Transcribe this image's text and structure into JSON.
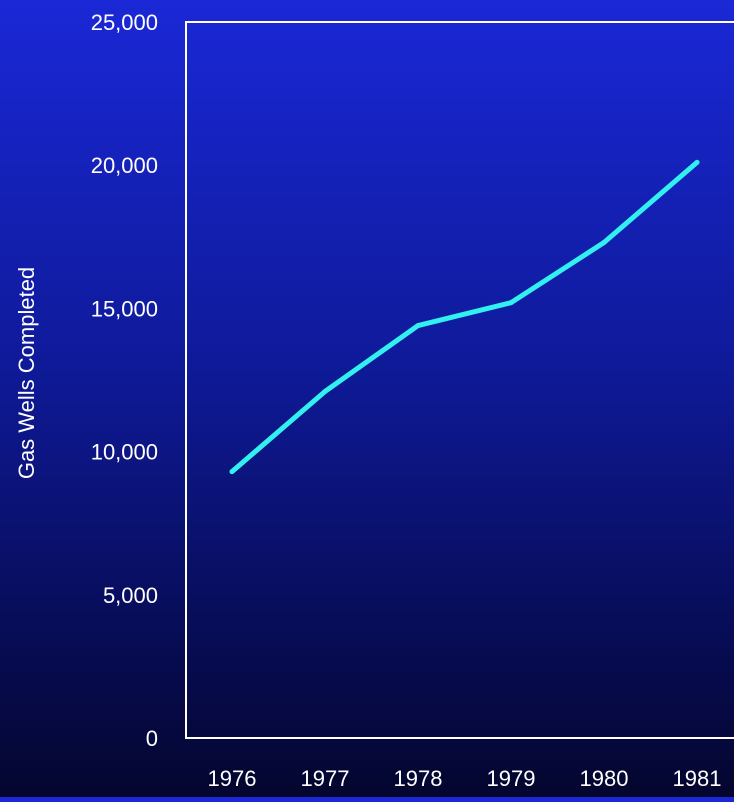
{
  "chart_data": {
    "type": "line",
    "title": "",
    "xlabel": "",
    "ylabel": "Gas Wells Completed",
    "categories": [
      "1976",
      "1977",
      "1978",
      "1979",
      "1980",
      "1981"
    ],
    "series": [
      {
        "values": [
          9300,
          12100,
          14400,
          15200,
          17300,
          20100
        ]
      }
    ],
    "ylim": [
      0,
      25000
    ],
    "yticks": [
      0,
      5000,
      10000,
      15000,
      20000,
      25000
    ],
    "ytick_labels": [
      "0",
      "5,000",
      "10,000",
      "15,000",
      "20,000",
      "25,000"
    ],
    "grid": false,
    "legend": "none",
    "colors": {
      "line": "#33f0f0",
      "axes": "#ffffff",
      "text": "#ffffff"
    }
  }
}
